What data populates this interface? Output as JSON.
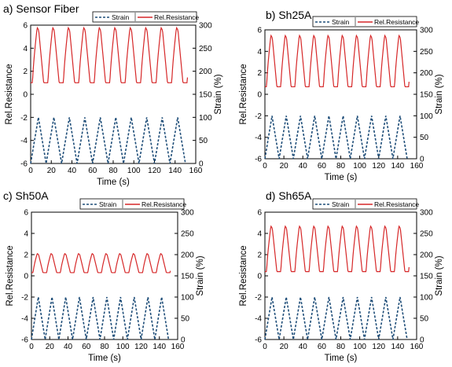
{
  "chart_data": [
    {
      "type": "line",
      "title": "a) Sensor Fiber",
      "xlabel": "Time (s)",
      "ylabel": "Rel.Resistance",
      "y2label": "Strain (%)",
      "xlim": [
        0,
        160
      ],
      "ylim": [
        -6,
        6
      ],
      "y2lim": [
        0,
        300
      ],
      "xticks": [
        "0",
        "20",
        "40",
        "60",
        "80",
        "100",
        "120",
        "140",
        "160"
      ],
      "yticks": [
        "-6",
        "-4",
        "-2",
        "0",
        "2",
        "4",
        "6"
      ],
      "y2ticks": [
        "0",
        "50",
        "100",
        "150",
        "200",
        "250",
        "300"
      ],
      "legend": [
        "Strain",
        "Rel.Resistance"
      ],
      "legend_position": "top",
      "series": [
        {
          "name": "Strain",
          "axis": "right",
          "style": "dashed",
          "color": "#1f4e79",
          "period_s": 15,
          "cycles": 10,
          "min": 0,
          "max": 100,
          "start_x": 0
        },
        {
          "name": "Rel.Resistance",
          "axis": "left",
          "style": "solid",
          "color": "#d62728",
          "period_s": 15,
          "cycles": 10,
          "baseline": 1.0,
          "peak": 5.8,
          "end_x": 152
        }
      ]
    },
    {
      "type": "line",
      "title": "b) Sh25A",
      "xlabel": "Time (s)",
      "ylabel": "Rel.Resistance",
      "y2label": "Strain (%)",
      "xlim": [
        0,
        160
      ],
      "ylim": [
        -6,
        6
      ],
      "y2lim": [
        0,
        300
      ],
      "xticks": [
        "0",
        "20",
        "40",
        "60",
        "80",
        "100",
        "120",
        "140",
        "160"
      ],
      "yticks": [
        "-6",
        "-4",
        "-2",
        "0",
        "2",
        "4",
        "6"
      ],
      "y2ticks": [
        "0",
        "50",
        "100",
        "150",
        "200",
        "250",
        "300"
      ],
      "legend": [
        "Strain",
        "Rel.Resistance"
      ],
      "legend_position": "top",
      "series": [
        {
          "name": "Strain",
          "axis": "right",
          "style": "dashed",
          "color": "#1f4e79",
          "period_s": 15,
          "cycles": 10,
          "min": 0,
          "max": 100,
          "start_x": 0
        },
        {
          "name": "Rel.Resistance",
          "axis": "left",
          "style": "solid",
          "color": "#d62728",
          "period_s": 15,
          "cycles": 10,
          "baseline": 0.7,
          "peak": 5.5,
          "end_x": 152
        }
      ]
    },
    {
      "type": "line",
      "title": "c) Sh50A",
      "xlabel": "Time (s)",
      "ylabel": "Rel.Resistance",
      "y2label": "Strain (%)",
      "xlim": [
        0,
        160
      ],
      "ylim": [
        -6,
        6
      ],
      "y2lim": [
        0,
        300
      ],
      "xticks": [
        "0",
        "20",
        "40",
        "60",
        "80",
        "100",
        "120",
        "140",
        "160"
      ],
      "yticks": [
        "-6",
        "-4",
        "-2",
        "0",
        "2",
        "4",
        "6"
      ],
      "y2ticks": [
        "0",
        "50",
        "100",
        "150",
        "200",
        "250",
        "300"
      ],
      "legend": [
        "Strain",
        "Rel.Resistance"
      ],
      "legend_position": "top",
      "series": [
        {
          "name": "Strain",
          "axis": "right",
          "style": "dashed",
          "color": "#1f4e79",
          "period_s": 15,
          "cycles": 10,
          "min": 0,
          "max": 100,
          "start_x": 0
        },
        {
          "name": "Rel.Resistance",
          "axis": "left",
          "style": "solid",
          "color": "#d62728",
          "period_s": 15,
          "cycles": 10,
          "baseline": 0.3,
          "peak": 2.1,
          "end_x": 152
        }
      ]
    },
    {
      "type": "line",
      "title": "d) Sh65A",
      "xlabel": "Time (s)",
      "ylabel": "Rel.Resistance",
      "y2label": "Strain (%)",
      "xlim": [
        0,
        160
      ],
      "ylim": [
        -6,
        6
      ],
      "y2lim": [
        0,
        300
      ],
      "xticks": [
        "0",
        "20",
        "40",
        "60",
        "80",
        "100",
        "120",
        "140",
        "160"
      ],
      "yticks": [
        "-6",
        "-4",
        "-2",
        "0",
        "2",
        "4",
        "6"
      ],
      "y2ticks": [
        "0",
        "50",
        "100",
        "150",
        "200",
        "250",
        "300"
      ],
      "legend": [
        "Strain",
        "Rel.Resistance"
      ],
      "legend_position": "top",
      "series": [
        {
          "name": "Strain",
          "axis": "right",
          "style": "dashed",
          "color": "#1f4e79",
          "period_s": 15,
          "cycles": 10,
          "min": 0,
          "max": 100,
          "start_x": 0
        },
        {
          "name": "Rel.Resistance",
          "axis": "left",
          "style": "solid",
          "color": "#d62728",
          "period_s": 15,
          "cycles": 10,
          "baseline": 0.4,
          "peak": 4.7,
          "end_x": 152
        }
      ]
    }
  ]
}
